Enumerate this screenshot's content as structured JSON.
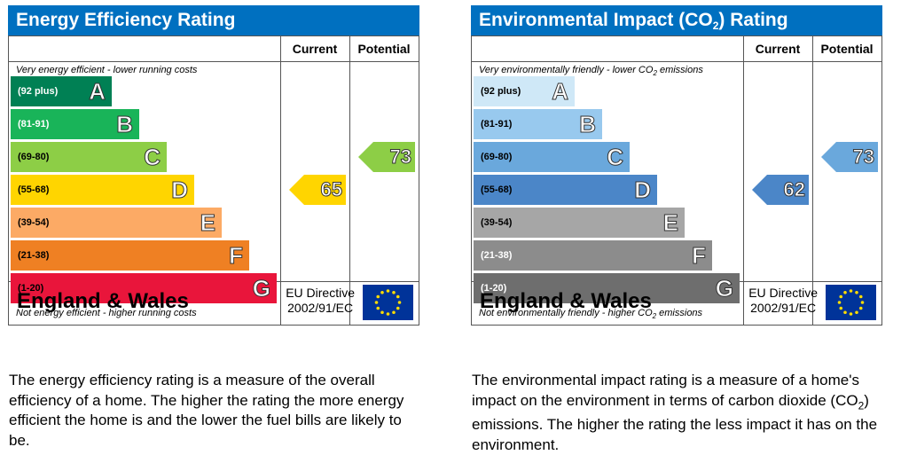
{
  "chart_data": [
    {
      "type": "bar",
      "title": "Energy Efficiency Rating",
      "column_headers": [
        "Current",
        "Potential"
      ],
      "top_note": "Very energy efficient - lower running costs",
      "bottom_note": "Not energy efficient - higher running costs",
      "bands": [
        {
          "range": "(92 plus)",
          "letter": "A",
          "color": "#008054",
          "range_color": "#ffffff"
        },
        {
          "range": "(81-91)",
          "letter": "B",
          "color": "#19b459",
          "range_color": "#ffffff"
        },
        {
          "range": "(69-80)",
          "letter": "C",
          "color": "#8dce46",
          "range_color": "#000000"
        },
        {
          "range": "(55-68)",
          "letter": "D",
          "color": "#ffd500",
          "range_color": "#000000"
        },
        {
          "range": "(39-54)",
          "letter": "E",
          "color": "#fcaa65",
          "range_color": "#000000"
        },
        {
          "range": "(21-38)",
          "letter": "F",
          "color": "#ef8023",
          "range_color": "#000000"
        },
        {
          "range": "(1-20)",
          "letter": "G",
          "color": "#e9153b",
          "range_color": "#000000"
        }
      ],
      "current": {
        "value": 65,
        "band": "D",
        "color": "#ffd500"
      },
      "potential": {
        "value": 73,
        "band": "C",
        "color": "#8dce46"
      },
      "footer_country": "England & Wales",
      "directive_line1": "EU Directive",
      "directive_line2": "2002/91/EC",
      "description": "The energy efficiency rating is a measure of the overall efficiency of a home. The higher the rating the more energy efficient the home is and the lower the fuel bills are likely to be."
    },
    {
      "type": "bar",
      "title_pre": "Environmental Impact (CO",
      "title_sub": "2",
      "title_post": ") Rating",
      "column_headers": [
        "Current",
        "Potential"
      ],
      "top_note_pre": "Very environmentally friendly - lower CO",
      "top_note_sub": "2",
      "top_note_post": " emissions",
      "bottom_note_pre": "Not environmentally friendly - higher CO",
      "bottom_note_sub": "2",
      "bottom_note_post": " emissions",
      "bands": [
        {
          "range": "(92 plus)",
          "letter": "A",
          "color": "#cfe8f7",
          "range_color": "#000000"
        },
        {
          "range": "(81-91)",
          "letter": "B",
          "color": "#98c9ee",
          "range_color": "#000000"
        },
        {
          "range": "(69-80)",
          "letter": "C",
          "color": "#6aa8dc",
          "range_color": "#000000"
        },
        {
          "range": "(55-68)",
          "letter": "D",
          "color": "#4b86c8",
          "range_color": "#000000"
        },
        {
          "range": "(39-54)",
          "letter": "E",
          "color": "#a6a6a6",
          "range_color": "#000000"
        },
        {
          "range": "(21-38)",
          "letter": "F",
          "color": "#8c8c8c",
          "range_color": "#ffffff"
        },
        {
          "range": "(1-20)",
          "letter": "G",
          "color": "#6e6e6e",
          "range_color": "#ffffff"
        }
      ],
      "current": {
        "value": 62,
        "band": "D",
        "color": "#4b86c8"
      },
      "potential": {
        "value": 73,
        "band": "C",
        "color": "#6aa8dc"
      },
      "footer_country": "England & Wales",
      "directive_line1": "EU Directive",
      "directive_line2": "2002/91/EC",
      "description_pre": "The environmental impact rating is a measure of a home's impact on the environment in terms of carbon dioxide (CO",
      "description_sub": "2",
      "description_post": ") emissions. The higher the rating the less impact it has on the environment."
    }
  ],
  "colors": {
    "header_blue": "#0070c0",
    "flag_blue": "#003399",
    "flag_star": "#ffdd00"
  }
}
